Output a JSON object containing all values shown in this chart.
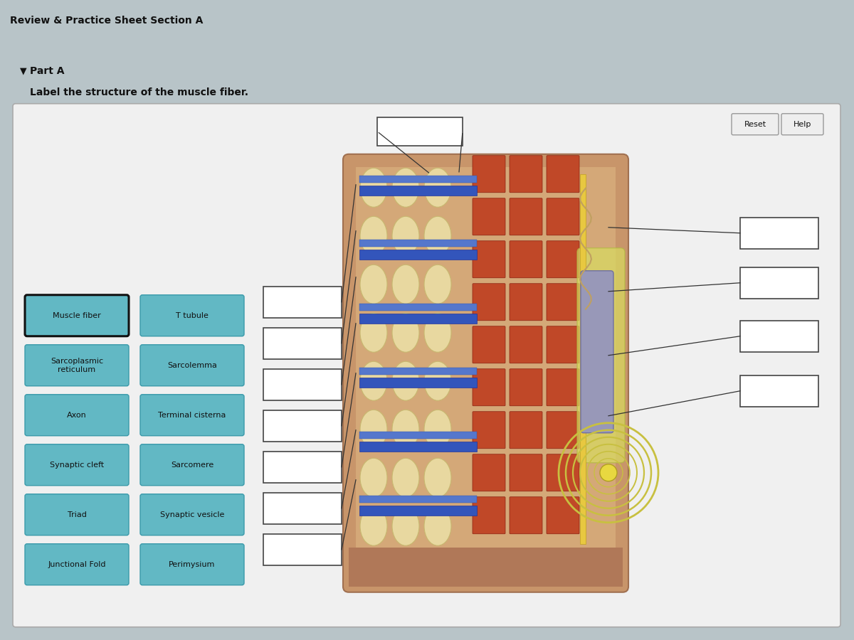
{
  "title": "Review & Practice Sheet Section A",
  "part": "Part A",
  "instruction": "Label the structure of the muscle fiber.",
  "fig_bg": "#b8c4c8",
  "header_bg": "#cdd8dc",
  "main_bg": "#c8d2d6",
  "panel_bg": "#f0f0f0",
  "teal_btn_color": "#62b8c4",
  "teal_btn_edge": "#3a9aaa",
  "selected_btn_edge": "#111111",
  "btn_text_color": "#111111",
  "empty_box_color": "#ffffff",
  "empty_box_edge": "#444444",
  "reset_help_bg": "#eeeeee",
  "reset_help_edge": "#999999",
  "labels_col1": [
    "Muscle fiber",
    "Sarcoplasmic\nreticulum",
    "Axon",
    "Synaptic cleft",
    "Triad",
    "Junctional Fold"
  ],
  "labels_col2": [
    "T tubule",
    "Sarcolemma",
    "Terminal cisterna",
    "Sarcomere",
    "Synaptic vesicle",
    "Perimysium"
  ],
  "font_size_title": 10,
  "font_size_part": 10,
  "font_size_instruction": 10,
  "font_size_btn": 8,
  "font_size_small": 7.5
}
